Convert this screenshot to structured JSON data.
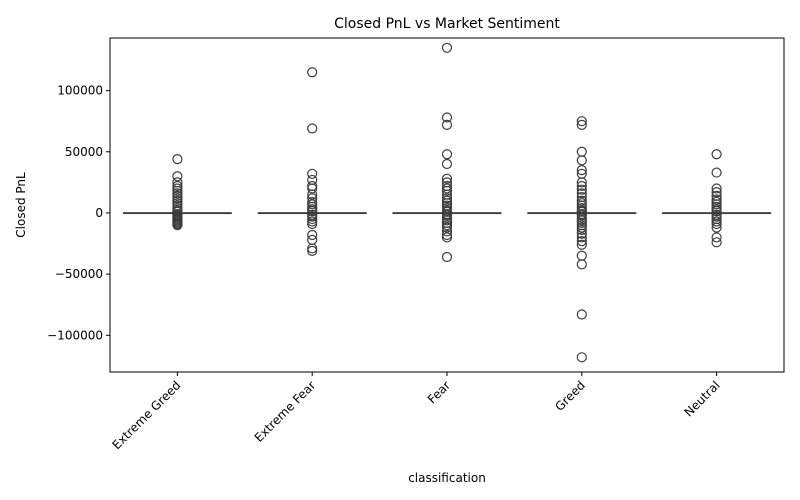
{
  "chart_data": {
    "type": "box",
    "title": "Closed PnL vs Market Sentiment",
    "xlabel": "classification",
    "ylabel": "Closed PnL",
    "ylim": [
      -130000,
      143000
    ],
    "yticks": [
      -100000,
      -50000,
      0,
      50000,
      100000
    ],
    "ytick_labels": [
      "−100000",
      "−50000",
      "0",
      "50000",
      "100000"
    ],
    "categories": [
      "Extreme Greed",
      "Extreme Fear",
      "Fear",
      "Greed",
      "Neutral"
    ],
    "boxes": [
      {
        "q1": 0,
        "median": 0,
        "q3": 0,
        "whisker_low": 0,
        "whisker_high": 0,
        "outliers": [
          44000,
          30000,
          25000,
          22000,
          20000,
          18000,
          16000,
          14000,
          12000,
          10000,
          8000,
          6000,
          4000,
          2000,
          1000,
          -1000,
          -2000,
          -3000,
          -4000,
          -5000,
          -6000,
          -7000,
          -8000,
          -9000,
          -10000
        ]
      },
      {
        "q1": 0,
        "median": 0,
        "q3": 0,
        "whisker_low": 0,
        "whisker_high": 0,
        "outliers": [
          115000,
          69000,
          32000,
          27000,
          22000,
          20000,
          15000,
          12000,
          9000,
          7000,
          5000,
          3000,
          1500,
          -1500,
          -3000,
          -5000,
          -7000,
          -9000,
          -18000,
          -22000,
          -29000,
          -31000
        ]
      },
      {
        "q1": 0,
        "median": 0,
        "q3": 0,
        "whisker_low": 0,
        "whisker_high": 0,
        "outliers": [
          135000,
          78000,
          72000,
          48000,
          40000,
          28000,
          25000,
          22000,
          20000,
          18000,
          15000,
          12000,
          10000,
          8000,
          6000,
          4000,
          2000,
          1000,
          -1000,
          -2000,
          -4000,
          -6000,
          -8000,
          -10000,
          -12000,
          -15000,
          -18000,
          -20000,
          -36000
        ]
      },
      {
        "q1": 0,
        "median": 0,
        "q3": 0,
        "whisker_low": 0,
        "whisker_high": 0,
        "outliers": [
          75000,
          72000,
          50000,
          43000,
          35000,
          32000,
          25000,
          22000,
          19000,
          16000,
          13000,
          10000,
          8000,
          6000,
          4000,
          2000,
          1000,
          -1000,
          -2000,
          -4000,
          -6000,
          -8000,
          -10000,
          -12000,
          -14000,
          -17000,
          -20000,
          -23000,
          -26000,
          -35000,
          -42000,
          -83000,
          -118000
        ]
      },
      {
        "q1": 0,
        "median": 0,
        "q3": 0,
        "whisker_low": 0,
        "whisker_high": 0,
        "outliers": [
          48000,
          33000,
          20000,
          17000,
          14000,
          11000,
          9000,
          7000,
          5000,
          3000,
          1500,
          -1500,
          -3000,
          -5000,
          -7000,
          -9000,
          -12000,
          -20000,
          -24000
        ]
      }
    ],
    "colors": {
      "box_edge": "#3d3d3d",
      "outlier_edge": "#3d3d3d",
      "axis": "#000000"
    }
  }
}
